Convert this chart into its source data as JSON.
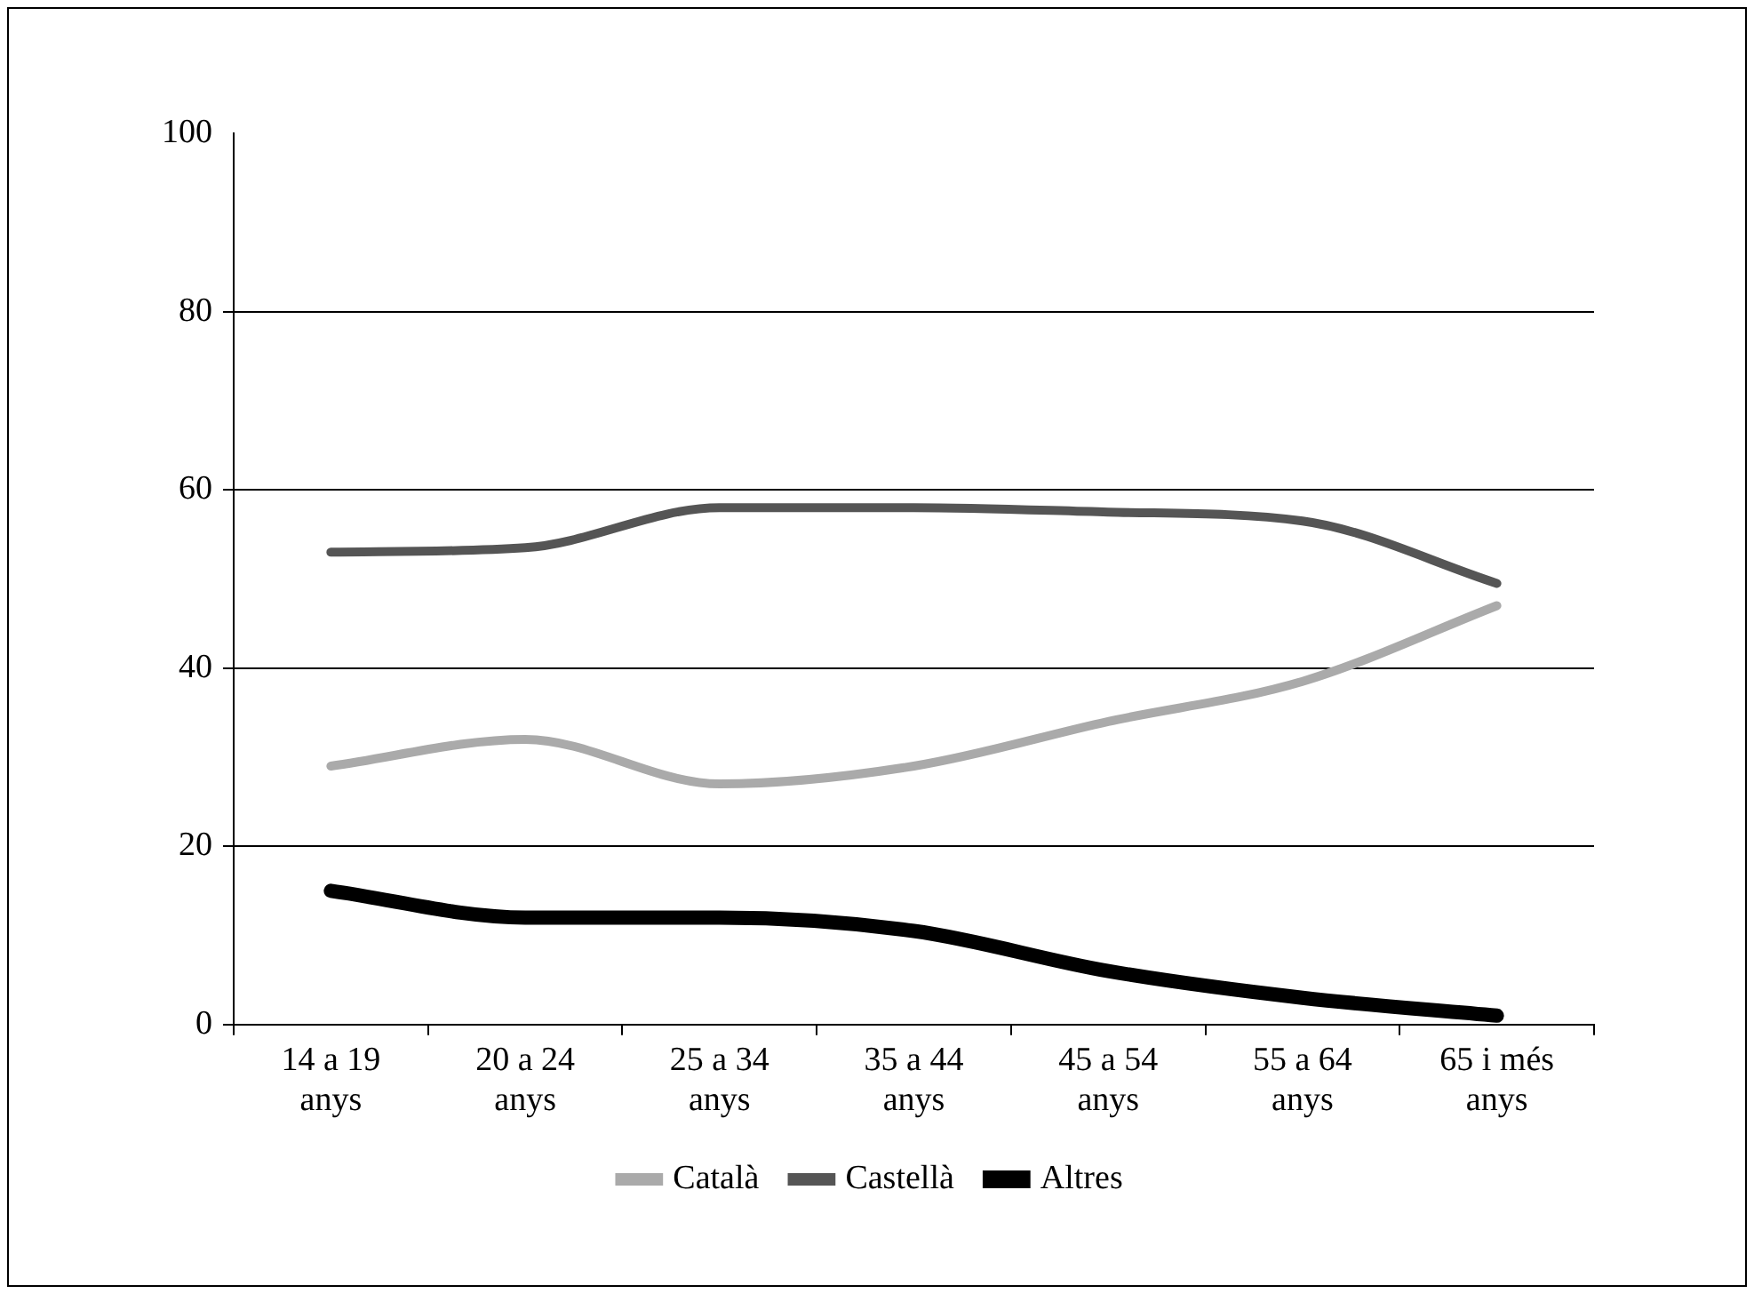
{
  "chart_data": {
    "type": "line",
    "categories": [
      "14 a 19 anys",
      "20 a 24 anys",
      "25 a 34 anys",
      "35 a 44 anys",
      "45 a 54 anys",
      "55 a 64 anys",
      "65 i més anys"
    ],
    "series": [
      {
        "name": "Català",
        "color": "#aaaaaa",
        "values": [
          29,
          32,
          27,
          29,
          34,
          38.5,
          47
        ]
      },
      {
        "name": "Castellà",
        "color": "#555555",
        "values": [
          53,
          53.5,
          58,
          58,
          57.5,
          56.5,
          49.5
        ]
      },
      {
        "name": "Altres",
        "color": "#000000",
        "values": [
          15,
          12,
          12,
          10.5,
          6,
          3,
          1
        ]
      }
    ],
    "ylim": [
      0,
      100
    ],
    "yticks": [
      0,
      20,
      40,
      60,
      80,
      100
    ],
    "grid": "y",
    "legend": "bottom",
    "marker": "none",
    "line_style": "solid"
  }
}
